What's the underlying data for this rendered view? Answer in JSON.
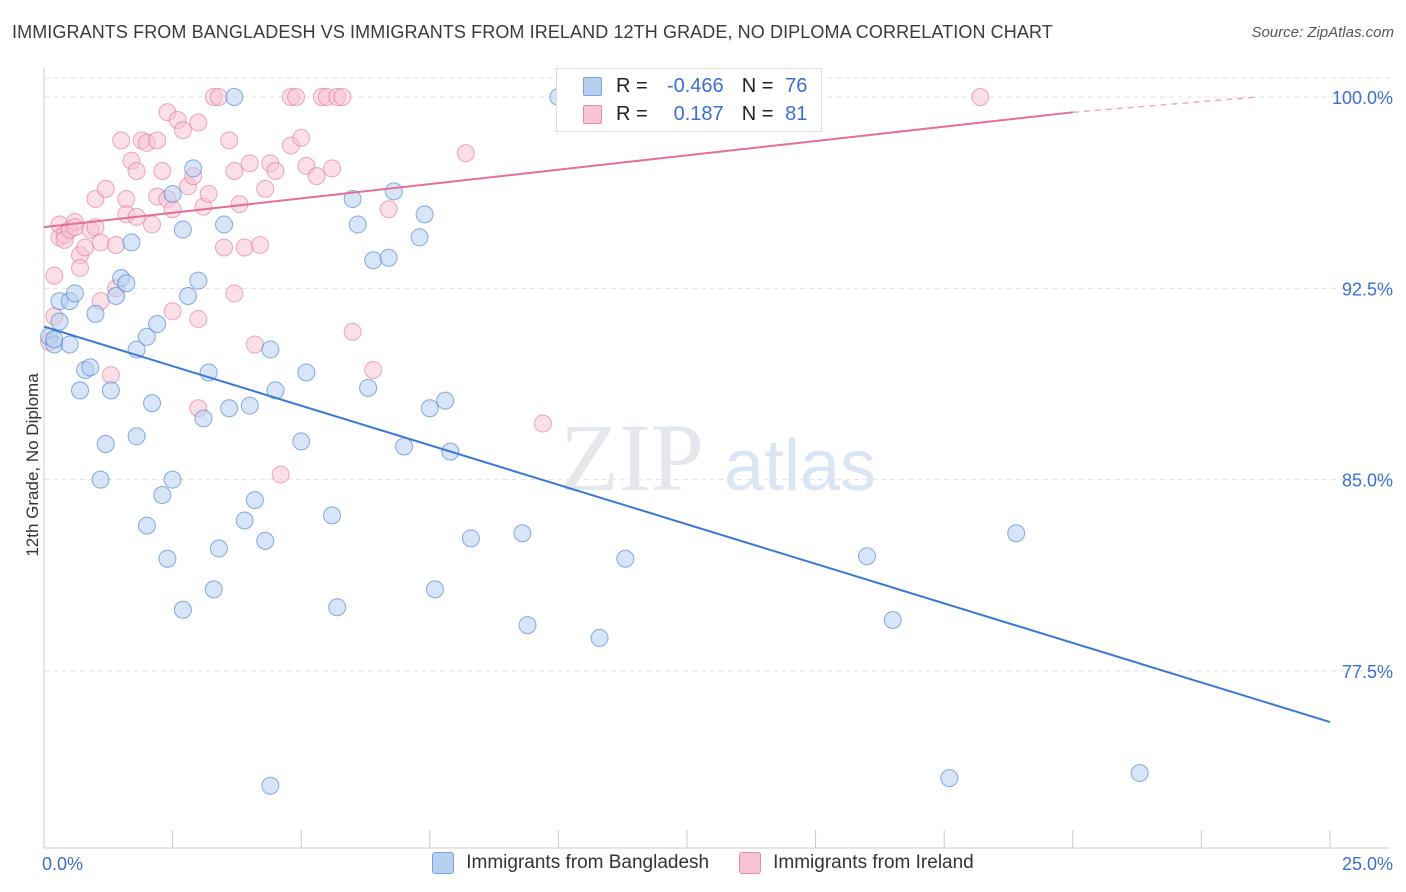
{
  "header": {
    "title": "IMMIGRANTS FROM BANGLADESH VS IMMIGRANTS FROM IRELAND 12TH GRADE, NO DIPLOMA CORRELATION CHART",
    "source": "Source: ZipAtlas.com"
  },
  "watermark": {
    "zip": "ZIP",
    "atlas": "atlas"
  },
  "legend": {
    "rows": [
      {
        "r_label": "R =",
        "r_value": "-0.466",
        "n_label": "N =",
        "n_value": "76",
        "fill": "#b8d0f0",
        "stroke": "#7aa3e0"
      },
      {
        "r_label": "R =",
        "r_value": "0.187",
        "n_label": "N =",
        "n_value": "81",
        "fill": "#f6c4d4",
        "stroke": "#e98aab"
      }
    ]
  },
  "chart_data": {
    "type": "scatter",
    "title": "IMMIGRANTS FROM BANGLADESH VS IMMIGRANTS FROM IRELAND 12TH GRADE, NO DIPLOMA CORRELATION CHART",
    "ylabel": "12th Grade, No Diploma",
    "xlabel": "",
    "xlim": [
      0,
      25
    ],
    "ylim": [
      72,
      101.5
    ],
    "x_tick_labels": [
      {
        "value": 0,
        "label": "0.0%"
      },
      {
        "value": 25,
        "label": "25.0%"
      }
    ],
    "y_tick_labels": [
      {
        "value": 100,
        "label": "100.0%"
      },
      {
        "value": 92.5,
        "label": "92.5%"
      },
      {
        "value": 85,
        "label": "85.0%"
      },
      {
        "value": 77.5,
        "label": "77.5%"
      }
    ],
    "grid": true,
    "legend_position": "top-center",
    "series": [
      {
        "name": "Immigrants from Bangladesh",
        "color": "#3a78d4",
        "fill": "#b8d0f0",
        "r": -0.466,
        "n": 76,
        "trend": {
          "x0": 0,
          "y0": 91.0,
          "x1": 25,
          "y1": 75.5
        },
        "points": [
          [
            0.1,
            90.6
          ],
          [
            0.2,
            90.3
          ],
          [
            0.2,
            90.5
          ],
          [
            0.3,
            91.2
          ],
          [
            0.3,
            92.0
          ],
          [
            0.5,
            92.0
          ],
          [
            0.5,
            90.3
          ],
          [
            0.6,
            92.3
          ],
          [
            0.7,
            88.5
          ],
          [
            0.8,
            89.3
          ],
          [
            0.9,
            89.4
          ],
          [
            1.0,
            91.5
          ],
          [
            1.1,
            85.0
          ],
          [
            1.2,
            86.4
          ],
          [
            1.3,
            88.5
          ],
          [
            1.4,
            92.2
          ],
          [
            1.5,
            92.9
          ],
          [
            1.6,
            92.7
          ],
          [
            1.7,
            94.3
          ],
          [
            1.8,
            90.1
          ],
          [
            1.8,
            86.7
          ],
          [
            2.0,
            90.6
          ],
          [
            2.0,
            83.2
          ],
          [
            2.1,
            88.0
          ],
          [
            2.2,
            91.1
          ],
          [
            2.3,
            84.4
          ],
          [
            2.4,
            81.9
          ],
          [
            2.5,
            96.2
          ],
          [
            2.5,
            85.0
          ],
          [
            2.7,
            79.9
          ],
          [
            2.7,
            94.8
          ],
          [
            2.8,
            92.2
          ],
          [
            2.9,
            97.2
          ],
          [
            3.0,
            92.8
          ],
          [
            3.1,
            87.4
          ],
          [
            3.2,
            89.2
          ],
          [
            3.3,
            80.7
          ],
          [
            3.4,
            82.3
          ],
          [
            3.5,
            95.0
          ],
          [
            3.6,
            87.8
          ],
          [
            3.7,
            100.0
          ],
          [
            3.9,
            83.4
          ],
          [
            4.0,
            87.9
          ],
          [
            4.1,
            84.2
          ],
          [
            4.3,
            82.6
          ],
          [
            4.4,
            90.1
          ],
          [
            4.4,
            73.0
          ],
          [
            4.5,
            88.5
          ],
          [
            5.0,
            86.5
          ],
          [
            5.1,
            89.2
          ],
          [
            5.6,
            83.6
          ],
          [
            5.7,
            80.0
          ],
          [
            6.0,
            96.0
          ],
          [
            6.1,
            95.0
          ],
          [
            6.3,
            88.6
          ],
          [
            6.4,
            93.6
          ],
          [
            6.7,
            93.7
          ],
          [
            6.8,
            96.3
          ],
          [
            7.0,
            86.3
          ],
          [
            7.3,
            94.5
          ],
          [
            7.4,
            95.4
          ],
          [
            7.5,
            87.8
          ],
          [
            7.6,
            80.7
          ],
          [
            7.8,
            88.1
          ],
          [
            7.9,
            86.1
          ],
          [
            8.3,
            82.7
          ],
          [
            9.3,
            82.9
          ],
          [
            9.4,
            79.3
          ],
          [
            10.0,
            100.0
          ],
          [
            10.8,
            78.8
          ],
          [
            11.3,
            81.9
          ],
          [
            16.0,
            82.0
          ],
          [
            16.5,
            79.5
          ],
          [
            17.6,
            73.3
          ],
          [
            18.9,
            82.9
          ],
          [
            21.3,
            73.5
          ]
        ]
      },
      {
        "name": "Immigrants from Ireland",
        "color": "#e46f97",
        "fill": "#f6c4d4",
        "r": 0.187,
        "n": 81,
        "trend": {
          "x0": 0,
          "y0": 94.9,
          "x1": 20,
          "y1": 99.4,
          "dash_to_x": 23.6,
          "dash_to_y": 100.0
        },
        "points": [
          [
            0.1,
            90.4
          ],
          [
            0.2,
            93.0
          ],
          [
            0.2,
            91.4
          ],
          [
            0.3,
            94.5
          ],
          [
            0.3,
            95.0
          ],
          [
            0.4,
            94.6
          ],
          [
            0.4,
            94.4
          ],
          [
            0.5,
            94.8
          ],
          [
            0.6,
            95.1
          ],
          [
            0.6,
            94.9
          ],
          [
            0.7,
            93.8
          ],
          [
            0.7,
            93.3
          ],
          [
            0.8,
            94.1
          ],
          [
            0.9,
            94.8
          ],
          [
            1.0,
            96.0
          ],
          [
            1.0,
            94.9
          ],
          [
            1.1,
            94.3
          ],
          [
            1.1,
            92.0
          ],
          [
            1.2,
            96.4
          ],
          [
            1.3,
            89.1
          ],
          [
            1.4,
            94.2
          ],
          [
            1.4,
            92.5
          ],
          [
            1.5,
            98.3
          ],
          [
            1.6,
            96.0
          ],
          [
            1.6,
            95.4
          ],
          [
            1.7,
            97.5
          ],
          [
            1.8,
            95.3
          ],
          [
            1.8,
            97.1
          ],
          [
            1.9,
            98.3
          ],
          [
            2.0,
            98.2
          ],
          [
            2.1,
            95.0
          ],
          [
            2.2,
            96.1
          ],
          [
            2.2,
            98.3
          ],
          [
            2.3,
            97.1
          ],
          [
            2.4,
            96.0
          ],
          [
            2.4,
            99.4
          ],
          [
            2.5,
            95.6
          ],
          [
            2.5,
            91.6
          ],
          [
            2.6,
            99.1
          ],
          [
            2.7,
            98.7
          ],
          [
            2.8,
            96.5
          ],
          [
            2.9,
            96.9
          ],
          [
            3.0,
            99.0
          ],
          [
            3.0,
            91.3
          ],
          [
            3.0,
            87.8
          ],
          [
            3.1,
            95.7
          ],
          [
            3.2,
            96.2
          ],
          [
            3.3,
            100.0
          ],
          [
            3.4,
            100.0
          ],
          [
            3.5,
            94.1
          ],
          [
            3.6,
            98.3
          ],
          [
            3.7,
            97.1
          ],
          [
            3.7,
            92.3
          ],
          [
            3.8,
            95.8
          ],
          [
            3.9,
            94.1
          ],
          [
            4.0,
            97.4
          ],
          [
            4.1,
            90.3
          ],
          [
            4.2,
            94.2
          ],
          [
            4.3,
            96.4
          ],
          [
            4.4,
            97.4
          ],
          [
            4.5,
            97.1
          ],
          [
            4.6,
            85.2
          ],
          [
            4.8,
            100.0
          ],
          [
            4.8,
            98.1
          ],
          [
            4.9,
            100.0
          ],
          [
            5.0,
            98.4
          ],
          [
            5.1,
            97.3
          ],
          [
            5.3,
            96.9
          ],
          [
            5.4,
            100.0
          ],
          [
            5.5,
            100.0
          ],
          [
            5.6,
            97.2
          ],
          [
            5.7,
            100.0
          ],
          [
            5.8,
            100.0
          ],
          [
            6.0,
            90.8
          ],
          [
            6.4,
            89.3
          ],
          [
            6.7,
            95.6
          ],
          [
            8.2,
            97.8
          ],
          [
            9.7,
            87.2
          ],
          [
            10.2,
            100.0
          ],
          [
            11.0,
            100.0
          ],
          [
            18.2,
            100.0
          ]
        ]
      }
    ]
  }
}
